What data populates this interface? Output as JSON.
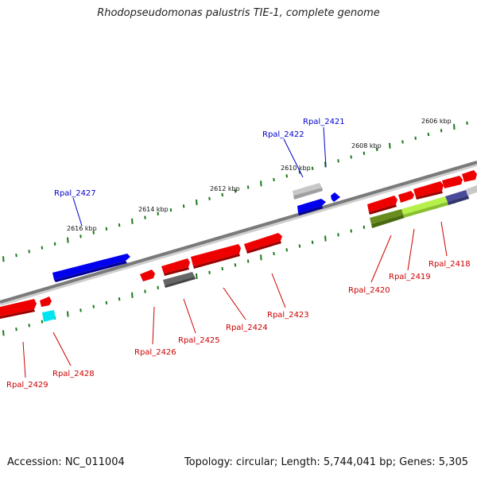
{
  "title": "Rhodopseudomonas palustris TIE-1, complete genome",
  "footer": {
    "accession": "Accession: NC_011004",
    "topology": "Topology: circular; Length: 5,744,041 bp; Genes: 5,305"
  },
  "colors": {
    "forward_gene": "#0000ee",
    "reverse_gene": "#ee0000",
    "backbone": "#7a7a7a",
    "tick": "#1a7a1a",
    "label_forward": "#0000cc",
    "label_reverse": "#cc0000"
  },
  "scale_labels": [
    "2606 kbp",
    "2608 kbp",
    "2610 kbp",
    "2612 kbp",
    "2614 kbp",
    "2616 kbp"
  ],
  "gene_labels": [
    {
      "text": "Rpal_2421",
      "color": "blue"
    },
    {
      "text": "Rpal_2422",
      "color": "blue"
    },
    {
      "text": "Rpal_2427",
      "color": "blue"
    },
    {
      "text": "Rpal_2418",
      "color": "red"
    },
    {
      "text": "Rpal_2419",
      "color": "red"
    },
    {
      "text": "Rpal_2420",
      "color": "red"
    },
    {
      "text": "Rpal_2423",
      "color": "red"
    },
    {
      "text": "Rpal_2424",
      "color": "red"
    },
    {
      "text": "Rpal_2425",
      "color": "red"
    },
    {
      "text": "Rpal_2426",
      "color": "red"
    },
    {
      "text": "Rpal_2428",
      "color": "red"
    },
    {
      "text": "Rpal_2429",
      "color": "red"
    }
  ]
}
